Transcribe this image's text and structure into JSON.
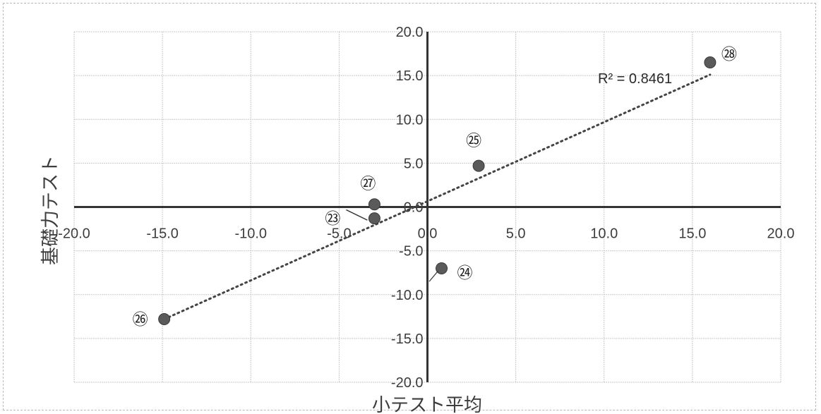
{
  "chart_data": {
    "type": "scatter",
    "title": "",
    "xlabel": "小テスト平均",
    "ylabel": "基礎力テスト",
    "xlim": [
      -20,
      20
    ],
    "ylim": [
      -20,
      20
    ],
    "grid": true,
    "x_ticks": [
      "-20.0",
      "-15.0",
      "-10.0",
      "-5.0",
      "0.0",
      "5.0",
      "10.0",
      "15.0",
      "20.0"
    ],
    "y_ticks": [
      "20.0",
      "15.0",
      "10.0",
      "5.0",
      "0.0",
      "-5.0",
      "-10.0",
      "-15.0",
      "-20.0"
    ],
    "points": [
      {
        "label": "㉓",
        "x": -3.0,
        "y": -1.3
      },
      {
        "label": "㉔",
        "x": 0.8,
        "y": -7.0
      },
      {
        "label": "㉕",
        "x": 2.9,
        "y": 4.7
      },
      {
        "label": "㉖",
        "x": -14.9,
        "y": -12.8
      },
      {
        "label": "㉗",
        "x": -3.0,
        "y": 0.3
      },
      {
        "label": "㉘",
        "x": 16.0,
        "y": 16.5
      }
    ],
    "trendline": {
      "type": "linear",
      "x_range": [
        -14.9,
        16.0
      ],
      "y_range": [
        -12.8,
        15.1
      ],
      "r2_text": "R² = 0.8461"
    },
    "marker_color": "#5a5a5a",
    "trendline_color": "#444444"
  }
}
